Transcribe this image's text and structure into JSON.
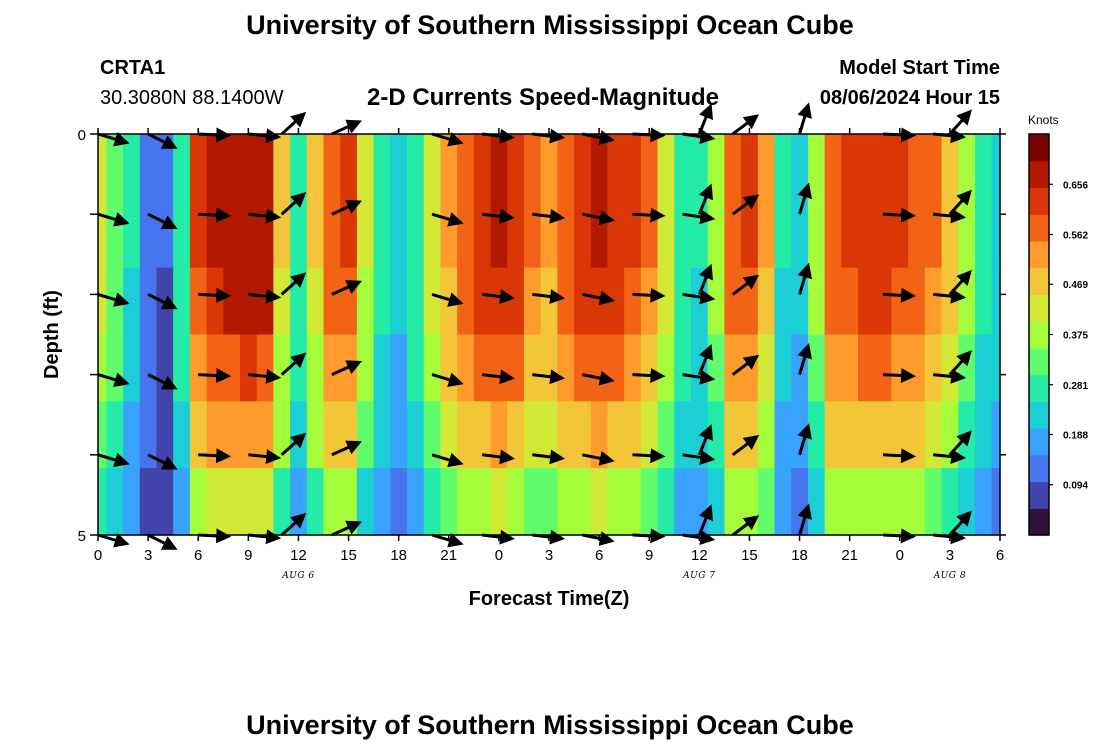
{
  "page": {
    "title_top": "University of Southern Mississippi Ocean Cube",
    "title_bottom": "University of Southern Mississippi Ocean Cube",
    "station_id": "CRTA1",
    "station_coords": "30.3080N  88.1400W",
    "chart_title": "2-D Currents Speed-Magnitude",
    "model_start_label": "Model Start Time",
    "model_start_value": "08/06/2024 Hour 15"
  },
  "chart_data": {
    "type": "heatmap",
    "title": "2-D Currents Speed-Magnitude",
    "xlabel": "Forecast Time(Z)",
    "ylabel": "Depth (ft)",
    "x_range": [
      0,
      54
    ],
    "y_range": [
      0,
      5
    ],
    "x_tick_values": [
      0,
      3,
      6,
      9,
      12,
      15,
      18,
      21,
      24,
      27,
      30,
      33,
      36,
      39,
      42,
      45,
      48,
      51,
      54
    ],
    "x_tick_labels": [
      "0",
      "3",
      "6",
      "9",
      "12",
      "15",
      "18",
      "21",
      "0",
      "3",
      "6",
      "9",
      "12",
      "15",
      "18",
      "21",
      "0",
      "3",
      "6"
    ],
    "y_tick_labels": [
      "0",
      "5"
    ],
    "date_labels": [
      {
        "text": "AUG 6",
        "hour": 12
      },
      {
        "text": "AUG 7",
        "hour": 36
      },
      {
        "text": "AUG 8",
        "hour": 51
      }
    ],
    "colorbar": {
      "unit": "Knots",
      "range": [
        0.0,
        0.75
      ],
      "ticks": [
        0.094,
        0.188,
        0.281,
        0.375,
        0.469,
        0.562,
        0.656
      ],
      "tick_labels": [
        "0.094",
        "0.188",
        "0.281",
        "0.375",
        "0.469",
        "0.562",
        "0.656"
      ]
    },
    "depth_levels": [
      0,
      1,
      2,
      3,
      4,
      5
    ],
    "hours": [
      0,
      1,
      2,
      3,
      4,
      5,
      6,
      7,
      8,
      9,
      10,
      11,
      12,
      13,
      14,
      15,
      16,
      17,
      18,
      19,
      20,
      21,
      22,
      23,
      24,
      25,
      26,
      27,
      28,
      29,
      30,
      31,
      32,
      33,
      34,
      35,
      36,
      37,
      38,
      39,
      40,
      41,
      42,
      43,
      44,
      45,
      46,
      47,
      48,
      49,
      50,
      51,
      52,
      53,
      54
    ],
    "speed_surface": [
      0.42,
      0.35,
      0.25,
      0.14,
      0.1,
      0.3,
      0.62,
      0.66,
      0.68,
      0.7,
      0.68,
      0.45,
      0.3,
      0.45,
      0.58,
      0.62,
      0.4,
      0.28,
      0.22,
      0.3,
      0.42,
      0.52,
      0.6,
      0.64,
      0.66,
      0.64,
      0.56,
      0.52,
      0.6,
      0.64,
      0.66,
      0.64,
      0.62,
      0.55,
      0.42,
      0.3,
      0.26,
      0.38,
      0.6,
      0.62,
      0.5,
      0.25,
      0.22,
      0.38,
      0.6,
      0.62,
      0.64,
      0.64,
      0.62,
      0.6,
      0.55,
      0.48,
      0.38,
      0.28,
      0.24
    ],
    "depth_factor": [
      1.0,
      1.0,
      0.96,
      0.88,
      0.78,
      0.62
    ],
    "arrows": [
      {
        "hour": 0,
        "depths": [
          0,
          1,
          2,
          3,
          4,
          5
        ],
        "dx": 1.0,
        "dy": 0.3,
        "len": 30
      },
      {
        "hour": 3,
        "depths": [
          0,
          1,
          2,
          3,
          4,
          5
        ],
        "dx": 1.0,
        "dy": 0.5,
        "len": 30
      },
      {
        "hour": 6,
        "depths": [
          0,
          1,
          2,
          3,
          4,
          5
        ],
        "dx": 1.0,
        "dy": 0.05,
        "len": 30
      },
      {
        "hour": 9,
        "depths": [
          0,
          1,
          2,
          3,
          4,
          5
        ],
        "dx": 1.0,
        "dy": 0.1,
        "len": 30
      },
      {
        "hour": 11,
        "depths": [
          0,
          1,
          2,
          3,
          4,
          5
        ],
        "dx": 1.0,
        "dy": -0.9,
        "len": 30
      },
      {
        "hour": 14,
        "depths": [
          0,
          1,
          2,
          3,
          4,
          5
        ],
        "dx": 1.0,
        "dy": -0.45,
        "len": 30
      },
      {
        "hour": 20,
        "depths": [
          0,
          1,
          2,
          3,
          4,
          5
        ],
        "dx": 1.0,
        "dy": 0.3,
        "len": 30
      },
      {
        "hour": 23,
        "depths": [
          0,
          1,
          2,
          3,
          4,
          5
        ],
        "dx": 1.0,
        "dy": 0.12,
        "len": 30
      },
      {
        "hour": 26,
        "depths": [
          0,
          1,
          2,
          3,
          4,
          5
        ],
        "dx": 1.0,
        "dy": 0.12,
        "len": 30
      },
      {
        "hour": 29,
        "depths": [
          0,
          1,
          2,
          3,
          4,
          5
        ],
        "dx": 1.0,
        "dy": 0.2,
        "len": 30
      },
      {
        "hour": 32,
        "depths": [
          0,
          1,
          2,
          3,
          4,
          5
        ],
        "dx": 1.0,
        "dy": 0.05,
        "len": 30
      },
      {
        "hour": 35,
        "depths": [
          0,
          1,
          2,
          3,
          4,
          5
        ],
        "dx": 1.0,
        "dy": 0.15,
        "len": 30
      },
      {
        "hour": 36,
        "depths": [
          0,
          1,
          2,
          3,
          4,
          5
        ],
        "dx": 0.4,
        "dy": -1.0,
        "len": 30
      },
      {
        "hour": 38,
        "depths": [
          0,
          1,
          2,
          3,
          4,
          5
        ],
        "dx": 1.0,
        "dy": -0.75,
        "len": 30
      },
      {
        "hour": 42,
        "depths": [
          0,
          1,
          2,
          3,
          4,
          5
        ],
        "dx": 0.3,
        "dy": -1.0,
        "len": 30
      },
      {
        "hour": 47,
        "depths": [
          0,
          1,
          2,
          3,
          4,
          5
        ],
        "dx": 1.0,
        "dy": 0.05,
        "len": 30
      },
      {
        "hour": 50,
        "depths": [
          0,
          1,
          2,
          3,
          4,
          5
        ],
        "dx": 1.0,
        "dy": 0.1,
        "len": 30
      },
      {
        "hour": 51,
        "depths": [
          0,
          1,
          2,
          3,
          4,
          5
        ],
        "dx": 0.9,
        "dy": -1.0,
        "len": 30
      }
    ],
    "colors": {
      "frame": "#000000",
      "arrow": "#000000",
      "colormap": [
        "#30123b",
        "#4145ab",
        "#4675ed",
        "#39a2fc",
        "#1bcfd4",
        "#24eca6",
        "#61fc6c",
        "#a4fc3b",
        "#d1e834",
        "#f3c63a",
        "#fe9b2d",
        "#f36315",
        "#d93806",
        "#b11901",
        "#7a0402"
      ]
    }
  }
}
